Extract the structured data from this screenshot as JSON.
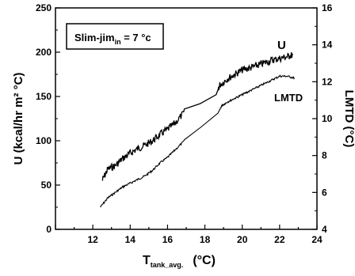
{
  "chart_data": {
    "type": "line",
    "annotation": {
      "main": "Slim-jim",
      "sub": "in",
      "rest": " = 7 °c"
    },
    "xlabel": {
      "main": "T",
      "sub": "tank_avg.",
      "unit": "(°C)"
    },
    "ylabel_left": "U (kcal/hr m² °C)",
    "ylabel_right": "LMTD (°C)",
    "xlim": [
      10,
      24
    ],
    "ylim_left": [
      0,
      250
    ],
    "ylim_right": [
      4,
      16
    ],
    "x_ticks": [
      "12",
      "14",
      "16",
      "18",
      "20",
      "22",
      "24"
    ],
    "y_ticks_left": [
      "0",
      "50",
      "100",
      "150",
      "200",
      "250"
    ],
    "y_ticks_right": [
      "4",
      "6",
      "8",
      "10",
      "12",
      "14",
      "16"
    ],
    "series": [
      {
        "name": "U",
        "axis": "left",
        "x": [
          12.5,
          12.8,
          13.2,
          13.6,
          14.0,
          14.4,
          14.8,
          15.2,
          15.6,
          16.0,
          16.4,
          16.9,
          18.6,
          18.8,
          19.2,
          19.6,
          20.0,
          20.4,
          20.8,
          21.2,
          21.6,
          22.0,
          22.4,
          22.7
        ],
        "y": [
          55,
          68,
          72,
          80,
          86,
          91,
          95,
          100,
          107,
          113,
          120,
          132,
          152,
          163,
          170,
          175,
          180,
          182,
          185,
          188,
          191,
          193,
          195,
          197
        ]
      },
      {
        "name": "LMTD",
        "axis": "right",
        "x": [
          12.4,
          12.8,
          13.2,
          13.6,
          14.0,
          14.4,
          14.8,
          15.2,
          15.6,
          16.0,
          16.4,
          16.9,
          18.7,
          18.9,
          19.2,
          19.6,
          20.0,
          20.4,
          20.8,
          21.2,
          21.6,
          22.0,
          22.4,
          22.8
        ],
        "y": [
          5.2,
          5.7,
          6.0,
          6.3,
          6.5,
          6.7,
          6.9,
          7.2,
          7.6,
          7.9,
          8.3,
          8.8,
          10.3,
          10.7,
          10.9,
          11.1,
          11.3,
          11.5,
          11.7,
          11.9,
          12.1,
          12.3,
          12.3,
          12.2
        ]
      }
    ],
    "series_labels": [
      "U",
      "LMTD"
    ]
  }
}
